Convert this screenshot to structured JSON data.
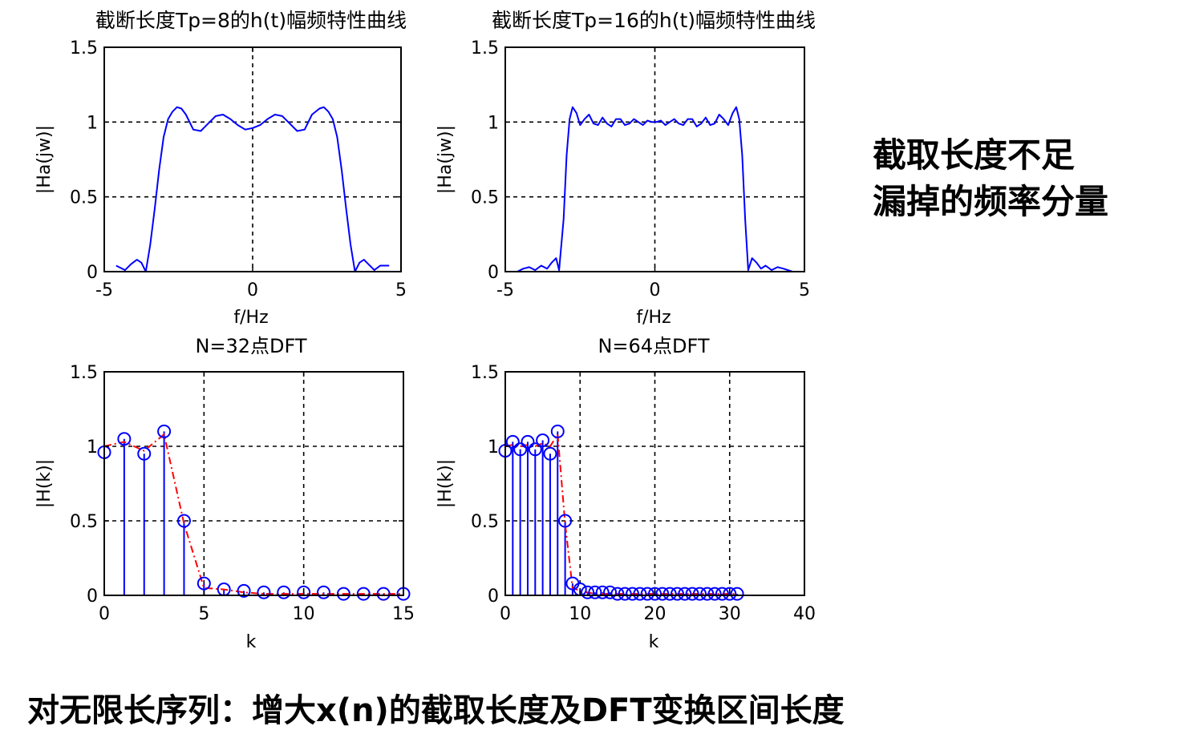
{
  "colors": {
    "curve": "#0000ff",
    "stem": "#0000ff",
    "envelope": "#ff0000",
    "axis": "#000000",
    "grid": "#000000"
  },
  "notes": {
    "right_line1": "截取长度不足",
    "right_line2": "漏掉的频率分量",
    "bottom": "对无限长序列：增大x(n)的截取长度及DFT变换区间长度"
  },
  "chart_data": [
    {
      "type": "line",
      "title": "截断长度Tp=8的h(t)幅频特性曲线",
      "xlabel": "f/Hz",
      "ylabel": "|Ha(jw)|",
      "xlim": [
        -5,
        5
      ],
      "ylim": [
        0,
        1.5
      ],
      "xticks": [
        -5,
        0,
        5
      ],
      "yticks": [
        0,
        0.5,
        1,
        1.5
      ],
      "xtick_labels": [
        "-5",
        "0",
        "5"
      ],
      "ytick_labels": [
        "0",
        "0.5",
        "1",
        "1.5"
      ],
      "grid": true,
      "series": [
        {
          "x": [
            -4.6,
            -4.3,
            -4.1,
            -3.9,
            -3.75,
            -3.6,
            -3.45,
            -3.3,
            -3.15,
            -3.0,
            -2.85,
            -2.7,
            -2.55,
            -2.4,
            -2.25,
            -2.0,
            -1.75,
            -1.5,
            -1.25,
            -1.0,
            -0.75,
            -0.5,
            -0.25,
            0,
            0.25,
            0.5,
            0.75,
            1.0,
            1.25,
            1.5,
            1.75,
            2.0,
            2.25,
            2.4,
            2.55,
            2.7,
            2.85,
            3.0,
            3.15,
            3.3,
            3.45,
            3.6,
            3.75,
            3.9,
            4.1,
            4.3,
            4.6
          ],
          "y": [
            0.04,
            0.01,
            0.05,
            0.08,
            0.06,
            0.0,
            0.18,
            0.42,
            0.68,
            0.9,
            1.02,
            1.07,
            1.1,
            1.09,
            1.05,
            0.95,
            0.94,
            0.99,
            1.04,
            1.05,
            1.02,
            0.98,
            0.95,
            0.96,
            0.98,
            1.02,
            1.05,
            1.04,
            0.99,
            0.94,
            0.95,
            1.05,
            1.09,
            1.1,
            1.07,
            1.02,
            0.9,
            0.68,
            0.42,
            0.18,
            0.0,
            0.06,
            0.08,
            0.05,
            0.01,
            0.04,
            0.04
          ]
        }
      ]
    },
    {
      "type": "line",
      "title": "截断长度Tp=16的h(t)幅频特性曲线",
      "xlabel": "f/Hz",
      "ylabel": "|Ha(jw)|",
      "xlim": [
        -5,
        5
      ],
      "ylim": [
        0,
        1.5
      ],
      "xticks": [
        -5,
        0,
        5
      ],
      "yticks": [
        0,
        0.5,
        1,
        1.5
      ],
      "xtick_labels": [
        "-5",
        "0",
        "5"
      ],
      "ytick_labels": [
        "0",
        "0.5",
        "1",
        "1.5"
      ],
      "grid": true,
      "series": [
        {
          "x": [
            -4.6,
            -4.4,
            -4.2,
            -4.0,
            -3.8,
            -3.6,
            -3.45,
            -3.3,
            -3.2,
            -3.05,
            -2.95,
            -2.85,
            -2.75,
            -2.62,
            -2.5,
            -2.35,
            -2.2,
            -2.05,
            -1.9,
            -1.75,
            -1.6,
            -1.45,
            -1.3,
            -1.15,
            -1.0,
            -0.85,
            -0.7,
            -0.55,
            -0.4,
            -0.25,
            -0.1,
            0.05,
            0.2,
            0.35,
            0.5,
            0.65,
            0.8,
            0.95,
            1.1,
            1.25,
            1.4,
            1.55,
            1.7,
            1.85,
            2.0,
            2.15,
            2.3,
            2.45,
            2.6,
            2.72,
            2.82,
            2.92,
            3.02,
            3.12,
            3.25,
            3.4,
            3.55,
            3.7,
            3.9,
            4.1,
            4.3,
            4.6
          ],
          "y": [
            0.0,
            0.02,
            0.03,
            0.01,
            0.04,
            0.02,
            0.06,
            0.09,
            0.01,
            0.35,
            0.78,
            1.02,
            1.1,
            1.06,
            0.98,
            1.02,
            1.05,
            0.99,
            0.98,
            1.03,
            0.99,
            0.97,
            1.02,
            1.02,
            0.98,
            0.99,
            1.02,
            1.0,
            0.98,
            1.01,
            1.0,
            1.0,
            1.01,
            0.98,
            1.0,
            1.02,
            0.99,
            0.98,
            1.02,
            1.02,
            0.97,
            0.99,
            1.03,
            0.98,
            0.99,
            1.05,
            1.02,
            0.98,
            1.06,
            1.1,
            1.02,
            0.78,
            0.35,
            0.01,
            0.09,
            0.06,
            0.02,
            0.04,
            0.01,
            0.03,
            0.02,
            0.0
          ]
        }
      ]
    },
    {
      "type": "stem",
      "title": "N=32点DFT",
      "xlabel": "k",
      "ylabel": "|H(k)|",
      "xlim": [
        0,
        15
      ],
      "ylim": [
        0,
        1.5
      ],
      "xticks": [
        0,
        5,
        10,
        15
      ],
      "yticks": [
        0,
        0.5,
        1,
        1.5
      ],
      "xtick_labels": [
        "0",
        "5",
        "10",
        "15"
      ],
      "ytick_labels": [
        "0",
        "0.5",
        "1",
        "1.5"
      ],
      "grid": true,
      "x": [
        0,
        1,
        2,
        3,
        4,
        5,
        6,
        7,
        8,
        9,
        10,
        11,
        12,
        13,
        14,
        15
      ],
      "values": [
        0.96,
        1.05,
        0.95,
        1.1,
        0.5,
        0.08,
        0.04,
        0.03,
        0.02,
        0.02,
        0.02,
        0.02,
        0.01,
        0.01,
        0.01,
        0.01
      ],
      "envelope": [
        1.0,
        1.03,
        0.97,
        1.08,
        0.48,
        0.05,
        0.04,
        0.02,
        0.01,
        0.01,
        0.01,
        0.01,
        0.01,
        0.01,
        0.01,
        0.01
      ]
    },
    {
      "type": "stem",
      "title": "N=64点DFT",
      "xlabel": "k",
      "ylabel": "|H(k)|",
      "xlim": [
        0,
        40
      ],
      "ylim": [
        0,
        1.5
      ],
      "xticks": [
        0,
        10,
        20,
        30,
        40
      ],
      "yticks": [
        0,
        0.5,
        1,
        1.5
      ],
      "xtick_labels": [
        "0",
        "10",
        "20",
        "30",
        "40"
      ],
      "ytick_labels": [
        "0",
        "0.5",
        "1",
        "1.5"
      ],
      "grid": true,
      "x": [
        0,
        1,
        2,
        3,
        4,
        5,
        6,
        7,
        8,
        9,
        10,
        11,
        12,
        13,
        14,
        15,
        16,
        17,
        18,
        19,
        20,
        21,
        22,
        23,
        24,
        25,
        26,
        27,
        28,
        29,
        30,
        31
      ],
      "values": [
        0.97,
        1.03,
        0.98,
        1.03,
        0.98,
        1.04,
        0.95,
        1.1,
        0.5,
        0.08,
        0.04,
        0.02,
        0.02,
        0.02,
        0.02,
        0.01,
        0.01,
        0.01,
        0.01,
        0.01,
        0.01,
        0.01,
        0.01,
        0.01,
        0.01,
        0.01,
        0.01,
        0.01,
        0.01,
        0.01,
        0.01,
        0.01
      ],
      "envelope": [
        1.0,
        1.01,
        1.0,
        1.01,
        1.0,
        1.02,
        1.0,
        1.08,
        0.48,
        0.05,
        0.03,
        0.02,
        0.01,
        0.01,
        0.01,
        0.01,
        0.01,
        0.01,
        0.01,
        0.01,
        0.01,
        0.01,
        0.01,
        0.01,
        0.01,
        0.01,
        0.01,
        0.01,
        0.01,
        0.01,
        0.01,
        0.01
      ]
    }
  ]
}
